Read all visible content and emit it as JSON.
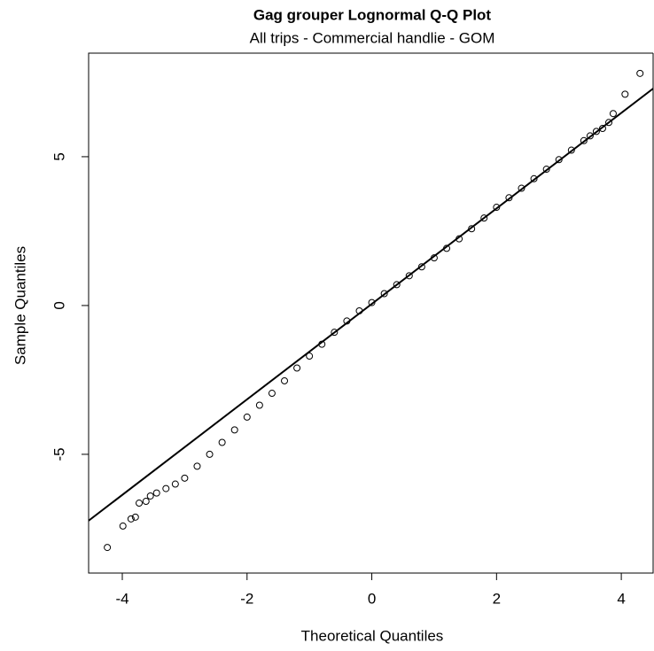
{
  "chart_data": {
    "type": "scatter",
    "title": "Gag grouper Lognormal Q-Q Plot",
    "subtitle": "All trips - Commercial handlie - GOM",
    "x_label": "Theoretical Quantiles",
    "y_label": "Sample Quantiles",
    "x": [
      -4.24,
      -3.99,
      -3.86,
      -3.79,
      -3.73,
      -3.62,
      -3.55,
      -3.45,
      -3.3,
      -3.15,
      -3.0,
      -2.8,
      -2.6,
      -2.4,
      -2.2,
      -2.0,
      -1.8,
      -1.6,
      -1.4,
      -1.2,
      -1.0,
      -0.8,
      -0.6,
      -0.4,
      -0.2,
      0,
      0.2,
      0.4,
      0.6,
      0.8,
      1.0,
      1.2,
      1.4,
      1.6,
      1.8,
      2.0,
      2.2,
      2.4,
      2.6,
      2.8,
      3.0,
      3.2,
      3.4,
      3.5,
      3.6,
      3.7,
      3.8,
      3.87,
      4.06,
      4.3
    ],
    "values": [
      -8.13,
      -7.41,
      -7.17,
      -7.11,
      -6.64,
      -6.58,
      -6.4,
      -6.3,
      -6.15,
      -6.0,
      -5.8,
      -5.4,
      -5.0,
      -4.6,
      -4.18,
      -3.75,
      -3.35,
      -2.95,
      -2.53,
      -2.1,
      -1.7,
      -1.3,
      -0.9,
      -0.52,
      -0.18,
      0.1,
      0.4,
      0.7,
      1.0,
      1.3,
      1.6,
      1.92,
      2.24,
      2.58,
      2.94,
      3.3,
      3.62,
      3.94,
      4.26,
      4.58,
      4.9,
      5.22,
      5.54,
      5.7,
      5.85,
      5.95,
      6.15,
      6.45,
      7.1,
      7.8
    ],
    "color": "#000000",
    "reference_line": {
      "x": [
        -4.54,
        4.51
      ],
      "y": [
        -7.23,
        7.29
      ]
    },
    "xlim": [
      -4.54,
      4.51
    ],
    "ylim": [
      -8.99,
      8.48
    ],
    "xticks": [
      -4,
      -2,
      0,
      2,
      4
    ],
    "yticks": [
      -5,
      0,
      5
    ]
  }
}
